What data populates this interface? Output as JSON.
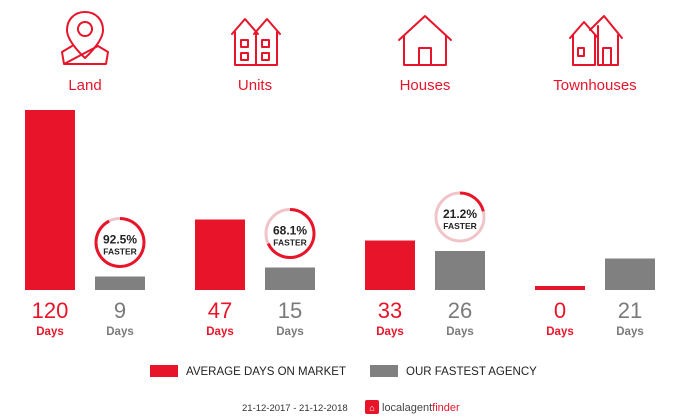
{
  "colors": {
    "accent": "#e8152a",
    "agency": "#808080",
    "value_grey": "#7a7a7a",
    "badge_ring_light": "#f0c4c8",
    "text_dark": "#222222",
    "footer_text": "#333333"
  },
  "chart_data": {
    "type": "bar",
    "categories": [
      "Land",
      "Units",
      "Houses",
      "Townhouses"
    ],
    "category_icons": [
      "map-pin-icon",
      "units-building-icon",
      "house-icon",
      "townhouses-icon"
    ],
    "series": [
      {
        "name": "AVERAGE DAYS ON MARKET",
        "values": [
          120,
          47,
          33,
          0
        ]
      },
      {
        "name": "OUR FASTEST AGENCY",
        "values": [
          9,
          15,
          26,
          21
        ]
      }
    ],
    "value_unit_label": "Days",
    "faster_badges": [
      {
        "category": "Land",
        "percent_text": "92.5%",
        "label": "FASTER",
        "fraction": 0.925
      },
      {
        "category": "Units",
        "percent_text": "68.1%",
        "label": "FASTER",
        "fraction": 0.681
      },
      {
        "category": "Houses",
        "percent_text": "21.2%",
        "label": "FASTER",
        "fraction": 0.212
      }
    ],
    "ylim": [
      0,
      120
    ],
    "grid": false,
    "legend_position": "bottom"
  },
  "footer": {
    "date_range": "21-12-2017 - 21-12-2018",
    "brand_local": "localagent",
    "brand_finder": "finder"
  }
}
